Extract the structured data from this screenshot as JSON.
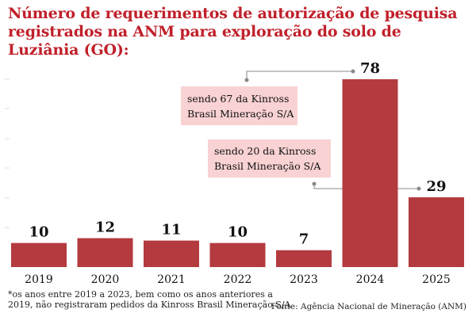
{
  "title": "Número de requerimentos de autorização de pesquisa registrados na ANM para exploração do solo de Luziânia (GO):",
  "chart_data": {
    "type": "bar",
    "categories": [
      "2019",
      "2020",
      "2021",
      "2022",
      "2023",
      "2024",
      "2025"
    ],
    "values": [
      10,
      12,
      11,
      10,
      7,
      78,
      29
    ],
    "title": "Número de requerimentos de autorização de pesquisa registrados na ANM para exploração do solo de Luziânia (GO):",
    "xlabel": "",
    "ylabel": "",
    "ylim": [
      0,
      80
    ],
    "bar_color": "#b33a3f",
    "annotations": [
      {
        "category": "2024",
        "text": [
          "sendo 67 da Kinross",
          "Brasil Mineração S/A"
        ]
      },
      {
        "category": "2025",
        "text": [
          "sendo 20 da Kinross",
          "Brasil Mineração S/A"
        ]
      }
    ]
  },
  "colors": {
    "title": "#c0202a",
    "bar": "#b33a3f",
    "annotation_box": "#f9d2d3",
    "connector": "#888888"
  },
  "footnote": "*os anos entre 2019 a 2023, bem como os anos anteriores a 2019, não registraram pedidos da Kinross Brasil Mineração S/A",
  "source": "Fonte: Agência Nacional de Mineração (ANM)"
}
